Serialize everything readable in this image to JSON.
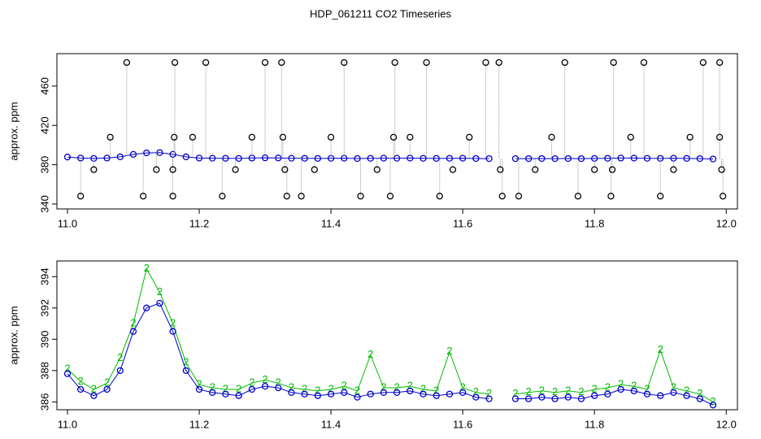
{
  "chart_data": [
    {
      "type": "line",
      "title": "HDP_061211  CO2 Timeseries",
      "ylabel": "approx. ppm",
      "xlim": [
        10.984,
        12.017
      ],
      "ylim": [
        335,
        493
      ],
      "xticks": [
        {
          "value": 11,
          "label": "11.0"
        },
        11.2,
        11.4,
        11.6,
        11.8,
        {
          "value": 12,
          "label": "12.0"
        }
      ],
      "yticks": [
        340,
        380,
        420,
        460
      ],
      "series": [
        {
          "color": "#0000cc",
          "marker": "circle",
          "line": true,
          "x": [
            11.0,
            11.02,
            11.04,
            11.06,
            11.08,
            11.1,
            11.12,
            11.14,
            11.16,
            11.18,
            11.2,
            11.22,
            11.24,
            11.26,
            11.28,
            11.3,
            11.32,
            11.34,
            11.36,
            11.38,
            11.4,
            11.42,
            11.44,
            11.46,
            11.48,
            11.5,
            11.52,
            11.54,
            11.56,
            11.58,
            11.6,
            11.62,
            11.64,
            11.66,
            11.68,
            11.7,
            11.72,
            11.74,
            11.76,
            11.78,
            11.8,
            11.82,
            11.84,
            11.86,
            11.88,
            11.9,
            11.92,
            11.94,
            11.96,
            11.98
          ],
          "values": [
            387.8,
            386.8,
            386.4,
            386.8,
            388,
            390.5,
            392,
            392.3,
            390.5,
            388,
            386.8,
            386.6,
            386.5,
            386.4,
            386.8,
            387,
            386.9,
            386.6,
            386.5,
            386.4,
            386.5,
            386.6,
            386.3,
            386.5,
            386.6,
            386.6,
            386.7,
            386.5,
            386.4,
            386.5,
            386.6,
            386.3,
            386.2,
            null,
            386.2,
            386.2,
            386.3,
            386.2,
            386.3,
            386.2,
            386.4,
            386.5,
            386.8,
            386.7,
            386.5,
            386.4,
            386.6,
            386.4,
            386.2,
            385.8
          ]
        },
        {
          "color": "#000000",
          "marker": "circle",
          "line": false,
          "drop_lines": true,
          "x": [
            11.02,
            11.04,
            11.065,
            11.09,
            11.115,
            11.135,
            11.16,
            11.16,
            11.162,
            11.163,
            11.19,
            11.21,
            11.235,
            11.255,
            11.28,
            11.3,
            11.325,
            11.327,
            11.33,
            11.333,
            11.355,
            11.375,
            11.4,
            11.42,
            11.445,
            11.47,
            11.49,
            11.495,
            11.497,
            11.52,
            11.545,
            11.565,
            11.585,
            11.61,
            11.635,
            11.655,
            11.657,
            11.66,
            11.685,
            11.71,
            11.735,
            11.755,
            11.775,
            11.8,
            11.825,
            11.827,
            11.829,
            11.855,
            11.875,
            11.9,
            11.92,
            11.945,
            11.965,
            11.99,
            11.99,
            11.993,
            11.995
          ],
          "values": [
            348,
            375,
            408,
            484,
            348,
            375,
            348,
            375,
            408,
            484,
            408,
            484,
            348,
            375,
            408,
            484,
            484,
            408,
            375,
            348,
            348,
            375,
            408,
            484,
            348,
            375,
            348,
            408,
            484,
            408,
            484,
            348,
            375,
            408,
            484,
            484,
            375,
            348,
            348,
            375,
            408,
            484,
            348,
            375,
            348,
            375,
            484,
            408,
            484,
            348,
            375,
            408,
            484,
            484,
            408,
            375,
            348
          ]
        }
      ]
    },
    {
      "type": "line",
      "ylabel": "approx. ppm",
      "xlim": [
        10.984,
        12.017
      ],
      "ylim": [
        385.5,
        395
      ],
      "xticks": [
        {
          "value": 11,
          "label": "11.0"
        },
        11.2,
        11.4,
        11.6,
        11.8,
        {
          "value": 12,
          "label": "12.0"
        }
      ],
      "yticks": [
        386,
        388,
        390,
        392,
        394
      ],
      "series": [
        {
          "color": "#00bb00",
          "marker": "2",
          "line": true,
          "x": [
            11.0,
            11.02,
            11.04,
            11.06,
            11.08,
            11.1,
            11.12,
            11.14,
            11.16,
            11.18,
            11.2,
            11.22,
            11.24,
            11.26,
            11.28,
            11.3,
            11.32,
            11.34,
            11.36,
            11.38,
            11.4,
            11.42,
            11.44,
            11.46,
            11.48,
            11.5,
            11.52,
            11.54,
            11.56,
            11.58,
            11.6,
            11.62,
            11.64,
            11.66,
            11.68,
            11.7,
            11.72,
            11.74,
            11.76,
            11.78,
            11.8,
            11.82,
            11.84,
            11.86,
            11.88,
            11.9,
            11.92,
            11.94,
            11.96,
            11.98
          ],
          "values": [
            388.1,
            387.3,
            386.8,
            387.2,
            388.8,
            391,
            394.5,
            393,
            391,
            388.5,
            387.1,
            386.9,
            386.8,
            386.8,
            387.2,
            387.4,
            387.2,
            386.9,
            386.8,
            386.7,
            386.8,
            387,
            386.7,
            389,
            386.9,
            386.9,
            387,
            386.8,
            386.7,
            389.2,
            386.9,
            386.6,
            386.5,
            null,
            386.5,
            386.6,
            386.7,
            386.6,
            386.7,
            386.6,
            386.8,
            386.9,
            387.1,
            387,
            386.8,
            389.3,
            386.9,
            386.7,
            386.5,
            386
          ]
        },
        {
          "color": "#0000cc",
          "marker": "circle",
          "line": true,
          "x": [
            11.0,
            11.02,
            11.04,
            11.06,
            11.08,
            11.1,
            11.12,
            11.14,
            11.16,
            11.18,
            11.2,
            11.22,
            11.24,
            11.26,
            11.28,
            11.3,
            11.32,
            11.34,
            11.36,
            11.38,
            11.4,
            11.42,
            11.44,
            11.46,
            11.48,
            11.5,
            11.52,
            11.54,
            11.56,
            11.58,
            11.6,
            11.62,
            11.64,
            11.66,
            11.68,
            11.7,
            11.72,
            11.74,
            11.76,
            11.78,
            11.8,
            11.82,
            11.84,
            11.86,
            11.88,
            11.9,
            11.92,
            11.94,
            11.96,
            11.98
          ],
          "values": [
            387.8,
            386.8,
            386.4,
            386.8,
            388,
            390.5,
            392,
            392.3,
            390.5,
            388,
            386.8,
            386.6,
            386.5,
            386.4,
            386.8,
            387,
            386.9,
            386.6,
            386.5,
            386.4,
            386.5,
            386.6,
            386.3,
            386.5,
            386.6,
            386.6,
            386.7,
            386.5,
            386.4,
            386.5,
            386.6,
            386.3,
            386.2,
            null,
            386.2,
            386.2,
            386.3,
            386.2,
            386.3,
            386.2,
            386.4,
            386.5,
            386.8,
            386.7,
            386.5,
            386.4,
            386.6,
            386.4,
            386.2,
            385.8
          ]
        }
      ]
    }
  ]
}
